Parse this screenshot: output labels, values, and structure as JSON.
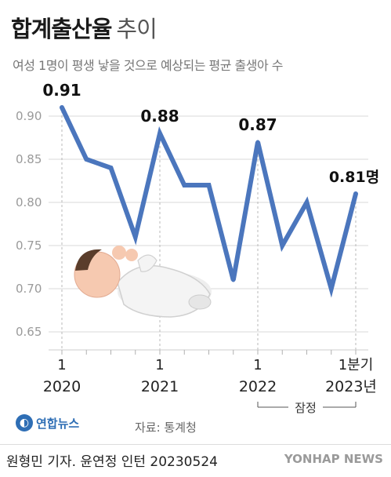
{
  "header": {
    "title_main": "합계출산율",
    "title_sub": "추이",
    "subtitle": "여성 1명이 평생 낳을 것으로 예상되는 평균 출생아 수"
  },
  "chart_data": {
    "type": "line",
    "x": [
      "2020-1",
      "2020-2",
      "2020-3",
      "2020-4",
      "2021-1",
      "2021-2",
      "2021-3",
      "2021-4",
      "2022-1",
      "2022-2",
      "2022-3",
      "2022-4",
      "2023-1"
    ],
    "series": [
      {
        "values": [
          0.91,
          0.85,
          0.84,
          0.76,
          0.88,
          0.82,
          0.82,
          0.71,
          0.87,
          0.75,
          0.8,
          0.7,
          0.81
        ]
      }
    ],
    "ylim": [
      0.65,
      0.9
    ],
    "yticks": [
      "0.65",
      "0.70",
      "0.75",
      "0.80",
      "0.85",
      "0.90"
    ],
    "xtick_quarters": [
      "1",
      "1",
      "1",
      "1분기"
    ],
    "xtick_years": [
      "2020",
      "2021",
      "2022",
      "2023년"
    ],
    "annotations": [
      {
        "index": 0,
        "label": "0.91"
      },
      {
        "index": 4,
        "label": "0.88"
      },
      {
        "index": 8,
        "label": "0.87"
      },
      {
        "index": 12,
        "label": "0.81명"
      }
    ],
    "provisional_label": "잠정",
    "grid": true,
    "colors": {
      "line": "#4b76bd",
      "grid": "#d9d9d9",
      "tick": "#b0b0b0",
      "dashed": "#b8b8b8"
    }
  },
  "footer": {
    "source": "자료: 통계청",
    "logo_text": "연합뉴스",
    "credit": "원형민 기자. 윤연정 인턴  20230524",
    "agency": "YONHAP NEWS"
  }
}
